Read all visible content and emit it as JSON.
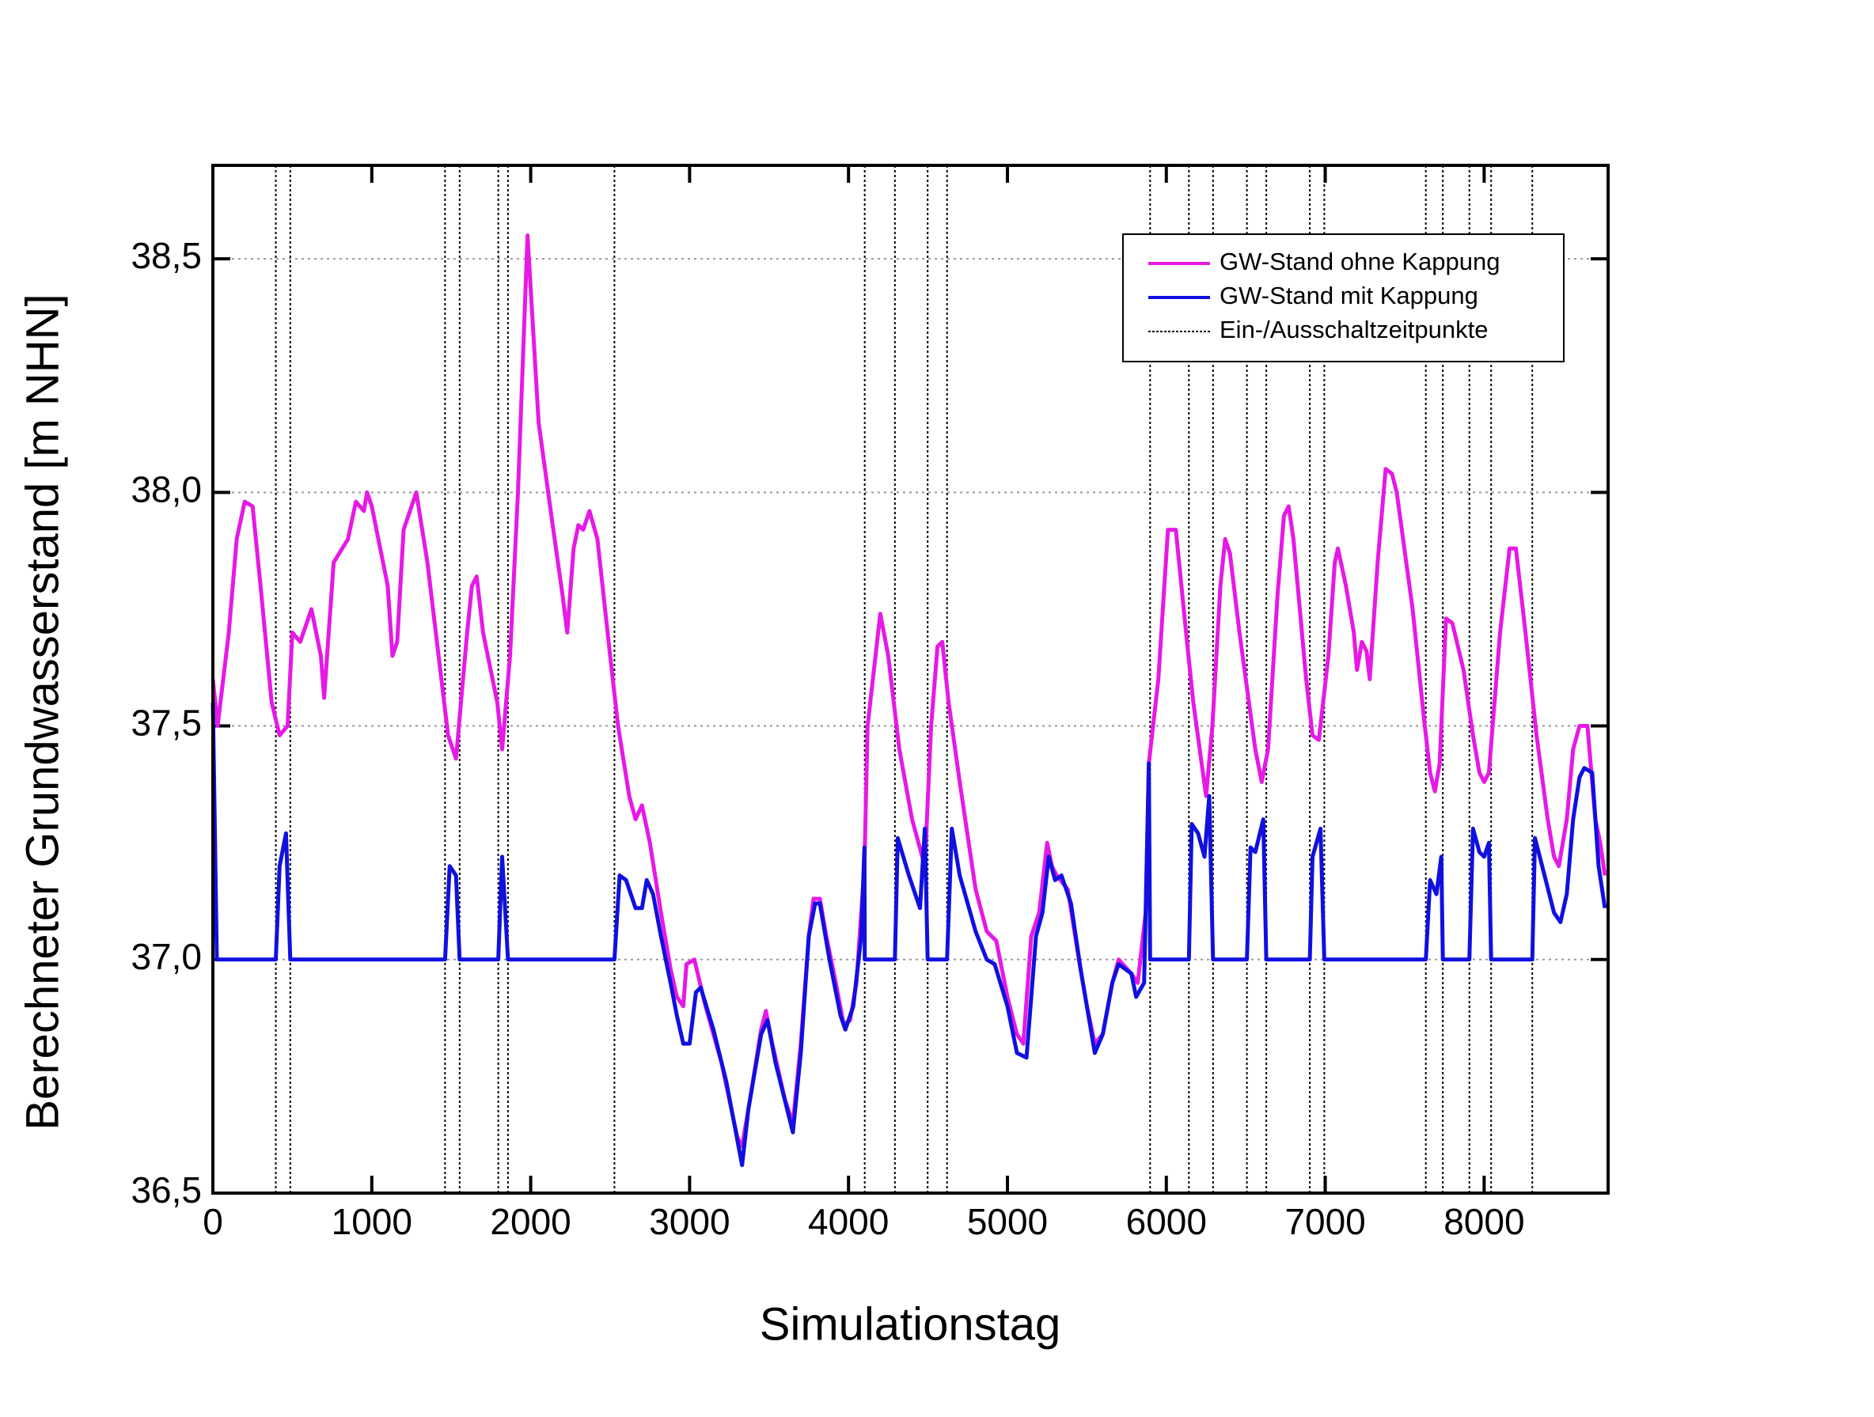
{
  "chart_data": {
    "type": "line",
    "xlabel": "Simulationstag",
    "ylabel": "Berechneter Grundwasserstand [m NHN]",
    "xlim": [
      0,
      8780
    ],
    "ylim": [
      36.5,
      38.7
    ],
    "xticks": [
      0,
      1000,
      2000,
      3000,
      4000,
      5000,
      6000,
      7000,
      8000
    ],
    "yticks": [
      {
        "value": 36.5,
        "label": "36,5"
      },
      {
        "value": 37,
        "label": "37,0"
      },
      {
        "value": 37.5,
        "label": "37,5"
      },
      {
        "value": 38,
        "label": "38,0"
      },
      {
        "value": 38.5,
        "label": "38,5"
      }
    ],
    "grid": true,
    "legend": "upper right",
    "series": [
      {
        "name": "GW-Stand ohne Kappung",
        "color": "#e619e6",
        "x": [
          0,
          30,
          100,
          150,
          200,
          250,
          300,
          370,
          420,
          470,
          500,
          550,
          620,
          680,
          700,
          760,
          850,
          900,
          950,
          970,
          1000,
          1100,
          1130,
          1160,
          1200,
          1240,
          1280,
          1350,
          1480,
          1530,
          1600,
          1630,
          1660,
          1700,
          1790,
          1820,
          1870,
          1920,
          1980,
          2050,
          2130,
          2200,
          2230,
          2270,
          2300,
          2330,
          2370,
          2420,
          2500,
          2550,
          2620,
          2660,
          2700,
          2750,
          2820,
          2880,
          2920,
          2960,
          2980,
          3030,
          3100,
          3200,
          3300,
          3330,
          3380,
          3450,
          3480,
          3520,
          3600,
          3650,
          3700,
          3750,
          3780,
          3820,
          3860,
          3920,
          3970,
          4010,
          4050,
          4100,
          4120,
          4180,
          4200,
          4250,
          4320,
          4400,
          4480,
          4520,
          4560,
          4590,
          4630,
          4700,
          4800,
          4870,
          4930,
          5000,
          5060,
          5100,
          5150,
          5200,
          5250,
          5280,
          5310,
          5380,
          5450,
          5500,
          5550,
          5600,
          5660,
          5700,
          5780,
          5820,
          5870,
          5890,
          5950,
          6010,
          6060,
          6130,
          6170,
          6230,
          6250,
          6290,
          6340,
          6370,
          6400,
          6460,
          6560,
          6600,
          6640,
          6700,
          6740,
          6770,
          6800,
          6880,
          6920,
          6960,
          7020,
          7060,
          7080,
          7130,
          7180,
          7200,
          7230,
          7260,
          7280,
          7330,
          7380,
          7420,
          7450,
          7550,
          7620,
          7660,
          7690,
          7720,
          7760,
          7800,
          7870,
          7930,
          7970,
          8000,
          8030,
          8100,
          8160,
          8200,
          8260,
          8330,
          8400,
          8440,
          8470,
          8520,
          8560,
          8600,
          8650,
          8700,
          8730,
          8760
        ],
        "values": [
          37.6,
          37.5,
          37.7,
          37.9,
          37.98,
          37.97,
          37.8,
          37.55,
          37.48,
          37.5,
          37.7,
          37.68,
          37.75,
          37.65,
          37.56,
          37.85,
          37.9,
          37.98,
          37.96,
          38.0,
          37.97,
          37.8,
          37.65,
          37.68,
          37.92,
          37.96,
          38.0,
          37.85,
          37.48,
          37.43,
          37.7,
          37.8,
          37.82,
          37.7,
          37.55,
          37.45,
          37.65,
          38.0,
          38.55,
          38.15,
          37.95,
          37.78,
          37.7,
          37.88,
          37.93,
          37.92,
          37.96,
          37.9,
          37.65,
          37.5,
          37.35,
          37.3,
          37.33,
          37.25,
          37.1,
          36.98,
          36.92,
          36.9,
          36.99,
          37.0,
          36.9,
          36.78,
          36.62,
          36.6,
          36.7,
          36.85,
          36.89,
          36.82,
          36.7,
          36.65,
          36.82,
          37.05,
          37.13,
          37.13,
          37.05,
          36.95,
          36.86,
          36.87,
          36.95,
          37.2,
          37.5,
          37.68,
          37.74,
          37.65,
          37.45,
          37.3,
          37.2,
          37.5,
          37.67,
          37.68,
          37.55,
          37.38,
          37.15,
          37.06,
          37.04,
          36.92,
          36.84,
          36.82,
          37.05,
          37.1,
          37.25,
          37.2,
          37.18,
          37.15,
          37.0,
          36.9,
          36.82,
          36.84,
          36.95,
          37.0,
          36.97,
          36.95,
          37.1,
          37.42,
          37.6,
          37.92,
          37.92,
          37.68,
          37.55,
          37.4,
          37.35,
          37.5,
          37.8,
          37.9,
          37.87,
          37.7,
          37.45,
          37.38,
          37.45,
          37.78,
          37.95,
          37.97,
          37.9,
          37.6,
          37.48,
          37.47,
          37.65,
          37.85,
          37.88,
          37.8,
          37.7,
          37.62,
          37.68,
          37.66,
          37.6,
          37.85,
          38.05,
          38.04,
          38.0,
          37.75,
          37.52,
          37.4,
          37.36,
          37.42,
          37.73,
          37.72,
          37.62,
          37.48,
          37.4,
          37.38,
          37.4,
          37.7,
          37.88,
          37.88,
          37.7,
          37.48,
          37.3,
          37.22,
          37.2,
          37.3,
          37.45,
          37.5,
          37.5,
          37.3,
          37.25,
          37.18
        ]
      },
      {
        "name": "GW-Stand mit Kappung",
        "color": "#1010e0",
        "x": [
          0,
          25,
          396,
          420,
          460,
          487,
          1461,
          1490,
          1530,
          1553,
          1796,
          1820,
          1857,
          2527,
          2560,
          2600,
          2660,
          2700,
          2730,
          2770,
          2820,
          2880,
          2920,
          2960,
          3000,
          3040,
          3070,
          3150,
          3230,
          3330,
          3370,
          3450,
          3490,
          3540,
          3650,
          3700,
          3750,
          3790,
          3820,
          3880,
          3950,
          3980,
          4030,
          4080,
          4100,
          4102,
          4292,
          4310,
          4380,
          4450,
          4480,
          4498,
          4620,
          4650,
          4700,
          4800,
          4870,
          4920,
          5000,
          5060,
          5120,
          5180,
          5220,
          5260,
          5300,
          5340,
          5400,
          5460,
          5500,
          5550,
          5600,
          5660,
          5700,
          5780,
          5810,
          5860,
          5890,
          5898,
          6142,
          6160,
          6200,
          6240,
          6270,
          6294,
          6507,
          6530,
          6560,
          6610,
          6629,
          6903,
          6920,
          6970,
          6994,
          7633,
          7660,
          7700,
          7730,
          7740,
          7907,
          7930,
          7970,
          8000,
          8030,
          8044,
          8303,
          8320,
          8380,
          8440,
          8480,
          8520,
          8560,
          8600,
          8630,
          8680,
          8720,
          8760
        ],
        "values": [
          37.55,
          37.0,
          37.0,
          37.2,
          37.27,
          37.0,
          37.0,
          37.2,
          37.18,
          37.0,
          37.0,
          37.22,
          37.0,
          37.0,
          37.18,
          37.17,
          37.11,
          37.11,
          37.17,
          37.14,
          37.05,
          36.95,
          36.88,
          36.82,
          36.82,
          36.93,
          36.94,
          36.85,
          36.74,
          36.56,
          36.68,
          36.84,
          36.87,
          36.78,
          36.63,
          36.8,
          37.05,
          37.12,
          37.12,
          37.0,
          36.88,
          36.85,
          36.9,
          37.05,
          37.24,
          37.0,
          37.0,
          37.26,
          37.18,
          37.11,
          37.28,
          37.0,
          37.0,
          37.28,
          37.18,
          37.06,
          37.0,
          36.99,
          36.9,
          36.8,
          36.79,
          37.05,
          37.1,
          37.22,
          37.17,
          37.18,
          37.12,
          36.98,
          36.9,
          36.8,
          36.84,
          36.95,
          36.99,
          36.97,
          36.92,
          36.95,
          37.42,
          37.0,
          37.0,
          37.29,
          37.27,
          37.22,
          37.35,
          37.0,
          37.0,
          37.24,
          37.23,
          37.3,
          37.0,
          37.0,
          37.22,
          37.28,
          37.0,
          37.0,
          37.17,
          37.14,
          37.22,
          37.0,
          37.0,
          37.28,
          37.23,
          37.22,
          37.25,
          37.0,
          37.0,
          37.26,
          37.18,
          37.1,
          37.08,
          37.14,
          37.3,
          37.39,
          37.41,
          37.4,
          37.2,
          37.11
        ]
      }
    ],
    "events": {
      "name": "Ein-/Ausschaltzeitpunkte",
      "color": "#000000",
      "x": [
        396,
        487,
        1461,
        1553,
        1796,
        1857,
        2527,
        4102,
        4292,
        4498,
        4620,
        5898,
        6142,
        6294,
        6507,
        6629,
        6903,
        6994,
        7633,
        7740,
        7907,
        8044,
        8303
      ]
    }
  }
}
